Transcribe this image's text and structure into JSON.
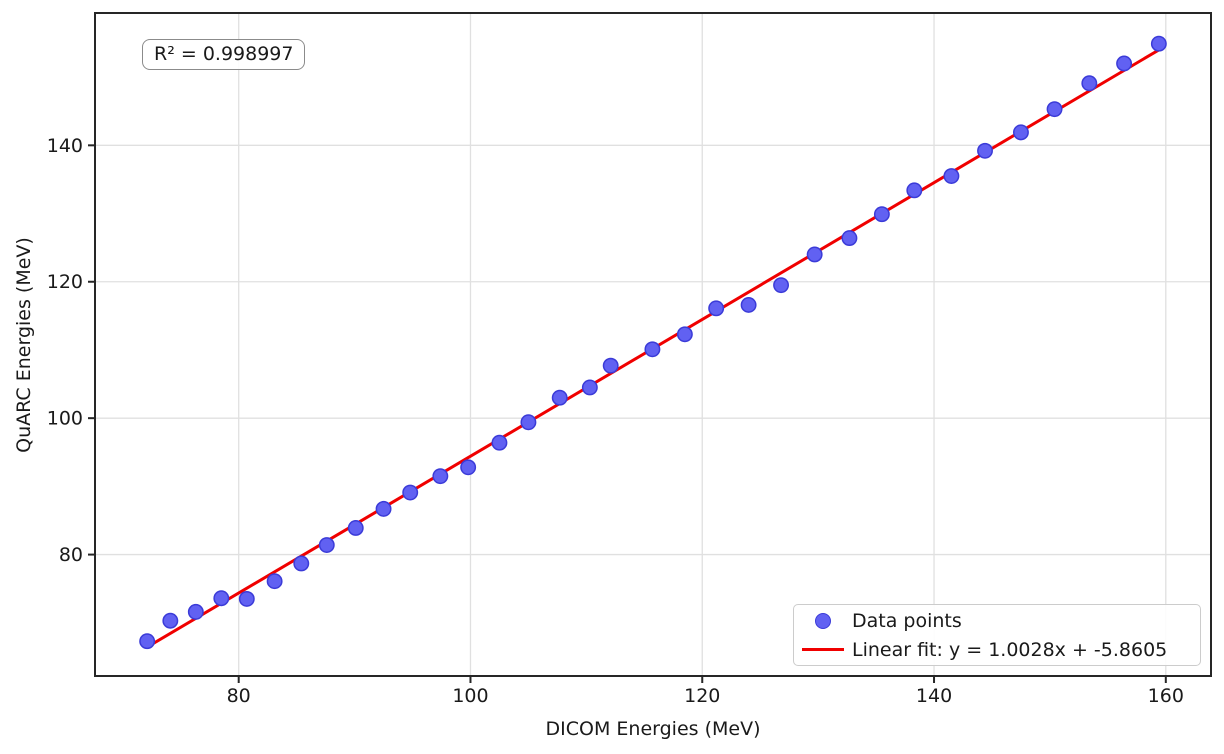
{
  "chart_data": {
    "type": "scatter",
    "title": "",
    "xlabel": "DICOM Energies (MeV)",
    "ylabel": "QuARC Energies (MeV)",
    "xlim": [
      67.6,
      163.9
    ],
    "ylim": [
      62.2,
      159.4
    ],
    "xticks": [
      80,
      100,
      120,
      140,
      160
    ],
    "yticks": [
      80,
      100,
      120,
      140
    ],
    "grid": true,
    "legend_position": "lower right",
    "annotation": "R² = 0.998997",
    "r_squared": 0.998997,
    "series": [
      {
        "name": "Data points",
        "marker": "circle",
        "color": "#6161f2",
        "edge_color": "#3b3bd8",
        "points": [
          [
            72.1,
            67.3
          ],
          [
            74.1,
            70.3
          ],
          [
            76.3,
            71.6
          ],
          [
            78.5,
            73.6
          ],
          [
            80.7,
            73.5
          ],
          [
            83.1,
            76.1
          ],
          [
            85.4,
            78.7
          ],
          [
            87.6,
            81.4
          ],
          [
            90.1,
            83.9
          ],
          [
            92.5,
            86.7
          ],
          [
            94.8,
            89.1
          ],
          [
            97.4,
            91.5
          ],
          [
            99.8,
            92.8
          ],
          [
            102.5,
            96.4
          ],
          [
            105.0,
            99.4
          ],
          [
            107.7,
            103.0
          ],
          [
            110.3,
            104.5
          ],
          [
            112.1,
            107.7
          ],
          [
            115.7,
            110.1
          ],
          [
            118.5,
            112.3
          ],
          [
            121.2,
            116.1
          ],
          [
            124.0,
            116.6
          ],
          [
            126.8,
            119.5
          ],
          [
            129.7,
            124.0
          ],
          [
            132.7,
            126.4
          ],
          [
            135.5,
            129.9
          ],
          [
            138.3,
            133.4
          ],
          [
            141.5,
            135.5
          ],
          [
            144.4,
            139.2
          ],
          [
            147.5,
            141.9
          ],
          [
            150.4,
            145.3
          ],
          [
            153.4,
            149.1
          ],
          [
            156.4,
            152.0
          ],
          [
            159.4,
            154.9
          ]
        ]
      }
    ],
    "fit_line": {
      "name": "Linear fit: y = 1.0028x + -5.8605",
      "slope": 1.0028,
      "intercept": -5.8605,
      "x_start": 72.1,
      "x_end": 159.4,
      "color": "#f00000"
    }
  },
  "colors": {
    "grid": "#e0e0e0",
    "spine": "#262626",
    "tick_label": "#1a1a1a",
    "background": "#ffffff"
  }
}
